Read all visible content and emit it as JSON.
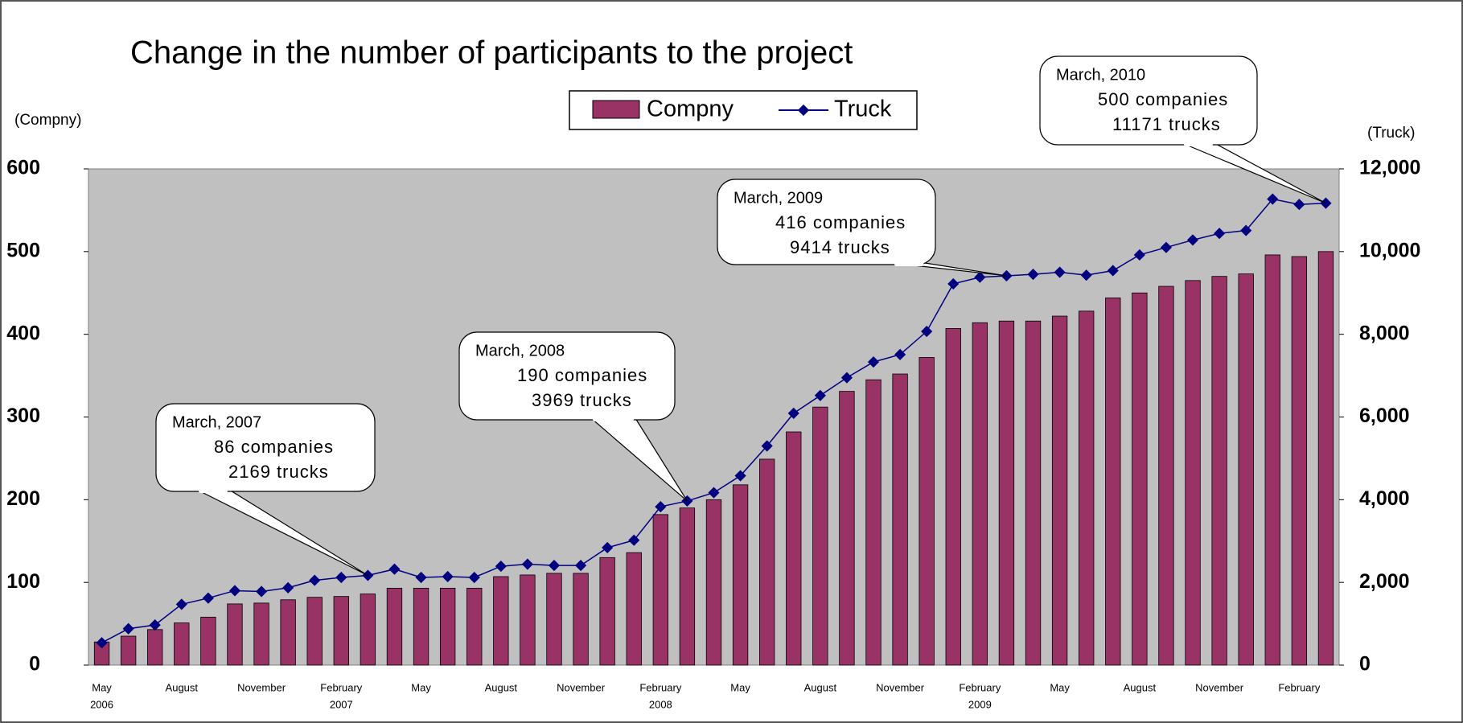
{
  "chart_data": {
    "type": "bar-line",
    "title": "Change in the number of participants to the project",
    "ylabel": "(Compny)",
    "y2label": "(Truck)",
    "categories": [
      "May",
      null,
      null,
      "August",
      null,
      null,
      "November",
      null,
      null,
      "February",
      null,
      null,
      "May",
      null,
      null,
      "August",
      null,
      null,
      "November",
      null,
      null,
      "February",
      null,
      null,
      "May",
      null,
      null,
      "August",
      null,
      null,
      "November",
      null,
      null,
      "February",
      null,
      null,
      "May",
      null,
      null,
      "August",
      null,
      null,
      "November",
      null,
      null,
      "February",
      null
    ],
    "year_labels": [
      "2006",
      null,
      null,
      null,
      null,
      null,
      null,
      null,
      null,
      "2007",
      null,
      null,
      null,
      null,
      null,
      null,
      null,
      null,
      null,
      null,
      null,
      "2008",
      null,
      null,
      null,
      null,
      null,
      null,
      null,
      null,
      null,
      null,
      null,
      "2009",
      null,
      null,
      null,
      null,
      null,
      null,
      null,
      null,
      null,
      null,
      null,
      null,
      null
    ],
    "series": [
      {
        "name": "Compny",
        "color": "#993366",
        "values": [
          28,
          35,
          43,
          51,
          58,
          74,
          75,
          79,
          82,
          83,
          86,
          93,
          93,
          93,
          93,
          107,
          109,
          111,
          111,
          130,
          136,
          182,
          190,
          200,
          218,
          249,
          282,
          312,
          331,
          345,
          352,
          372,
          407,
          414,
          416,
          416,
          422,
          428,
          444,
          450,
          458,
          465,
          470,
          473,
          496,
          494,
          500
        ]
      },
      {
        "name": "Truck",
        "color": "#000080",
        "axis": "y2",
        "values": [
          540,
          880,
          970,
          1470,
          1620,
          1800,
          1780,
          1870,
          2050,
          2120,
          2169,
          2320,
          2120,
          2140,
          2120,
          2390,
          2440,
          2410,
          2410,
          2840,
          3020,
          3830,
          3969,
          4170,
          4580,
          5300,
          6090,
          6520,
          6950,
          7330,
          7510,
          8070,
          9220,
          9380,
          9414,
          9450,
          9500,
          9430,
          9540,
          9920,
          10100,
          10280,
          10440,
          10510,
          11270,
          11140,
          11171
        ]
      }
    ],
    "ylim": [
      0,
      600
    ],
    "yticks": [
      0,
      100,
      200,
      300,
      400,
      500,
      600
    ],
    "y2lim": [
      0,
      12000
    ],
    "y2ticks": [
      0,
      {
        "value": 2000,
        "label": "2,000"
      },
      {
        "value": 4000,
        "label": "4,000"
      },
      {
        "value": 6000,
        "label": "6,000"
      },
      {
        "value": 8000,
        "label": "8,000"
      },
      {
        "value": 10000,
        "label": "10,000"
      },
      {
        "value": 12000,
        "label": "12,000"
      }
    ],
    "plot_background": "#c0c0c0",
    "annotations": [
      {
        "lines": [
          "March, 2007",
          "86 companies",
          "2169 trucks"
        ]
      },
      {
        "lines": [
          "March, 2008",
          "190 companies",
          "3969 trucks"
        ]
      },
      {
        "lines": [
          "March, 2009",
          "416 companies",
          "9414 trucks"
        ]
      },
      {
        "lines": [
          "March, 2010",
          "500 companies",
          "11171 trucks"
        ]
      }
    ]
  }
}
